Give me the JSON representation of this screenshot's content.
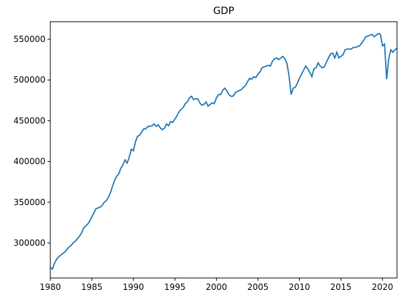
{
  "chart_data": {
    "type": "line",
    "title": "GDP",
    "series": [
      {
        "name": "GDP",
        "color": "#1f77b4",
        "x": [
          1980,
          1980.25,
          1980.5,
          1980.75,
          1981,
          1981.25,
          1981.5,
          1981.75,
          1982,
          1982.25,
          1982.5,
          1982.75,
          1983,
          1983.25,
          1983.5,
          1983.75,
          1984,
          1984.25,
          1984.5,
          1984.75,
          1985,
          1985.25,
          1985.5,
          1985.75,
          1986,
          1986.25,
          1986.5,
          1986.75,
          1987,
          1987.25,
          1987.5,
          1987.75,
          1988,
          1988.25,
          1988.5,
          1988.75,
          1989,
          1989.25,
          1989.5,
          1989.75,
          1990,
          1990.25,
          1990.5,
          1990.75,
          1991,
          1991.25,
          1991.5,
          1991.75,
          1992,
          1992.25,
          1992.5,
          1992.75,
          1993,
          1993.25,
          1993.5,
          1993.75,
          1994,
          1994.25,
          1994.5,
          1994.75,
          1995,
          1995.25,
          1995.5,
          1995.75,
          1996,
          1996.25,
          1996.5,
          1996.75,
          1997,
          1997.25,
          1997.5,
          1997.75,
          1998,
          1998.25,
          1998.5,
          1998.75,
          1999,
          1999.25,
          1999.5,
          1999.75,
          2000,
          2000.25,
          2000.5,
          2000.75,
          2001,
          2001.25,
          2001.5,
          2001.75,
          2002,
          2002.25,
          2002.5,
          2002.75,
          2003,
          2003.25,
          2003.5,
          2003.75,
          2004,
          2004.25,
          2004.5,
          2004.75,
          2005,
          2005.25,
          2005.5,
          2005.75,
          2006,
          2006.25,
          2006.5,
          2006.75,
          2007,
          2007.25,
          2007.5,
          2007.75,
          2008,
          2008.25,
          2008.5,
          2008.75,
          2009,
          2009.25,
          2009.5,
          2009.75,
          2010,
          2010.25,
          2010.5,
          2010.75,
          2011,
          2011.25,
          2011.5,
          2011.75,
          2012,
          2012.25,
          2012.5,
          2012.75,
          2013,
          2013.25,
          2013.5,
          2013.75,
          2014,
          2014.25,
          2014.5,
          2014.75,
          2015,
          2015.25,
          2015.5,
          2015.75,
          2016,
          2016.25,
          2016.5,
          2016.75,
          2017,
          2017.25,
          2017.5,
          2017.75,
          2018,
          2018.25,
          2018.5,
          2018.75,
          2019,
          2019.25,
          2019.5,
          2019.75,
          2020,
          2020.25,
          2020.5,
          2020.75,
          2021,
          2021.25,
          2021.5,
          2021.75
        ],
        "values": [
          270000,
          268000,
          275000,
          280000,
          283000,
          285000,
          287000,
          289000,
          292000,
          295000,
          297000,
          300000,
          302000,
          305000,
          308000,
          312000,
          318000,
          321000,
          323000,
          327000,
          332000,
          337000,
          342000,
          343000,
          344000,
          346000,
          350000,
          352000,
          356000,
          362000,
          370000,
          377000,
          382000,
          385000,
          392000,
          396000,
          402000,
          398000,
          405000,
          415000,
          413000,
          424000,
          431000,
          432000,
          436000,
          440000,
          440000,
          443000,
          443000,
          444000,
          446000,
          443000,
          445000,
          441000,
          439000,
          441000,
          446000,
          444000,
          449000,
          448000,
          452000,
          456000,
          461000,
          464000,
          466000,
          471000,
          473000,
          478000,
          480000,
          476000,
          477000,
          477000,
          472000,
          469000,
          470000,
          473000,
          468000,
          470000,
          472000,
          471000,
          478000,
          482000,
          482000,
          487000,
          490000,
          487000,
          482000,
          480000,
          480000,
          484000,
          486000,
          487000,
          488000,
          491000,
          493000,
          498000,
          502000,
          501000,
          504000,
          503000,
          507000,
          510000,
          515000,
          516000,
          517000,
          518000,
          517000,
          523000,
          526000,
          527000,
          525000,
          527000,
          529000,
          526000,
          520000,
          505000,
          482000,
          490000,
          491000,
          496000,
          502000,
          507000,
          512000,
          517000,
          514000,
          509000,
          504000,
          514000,
          515000,
          521000,
          517000,
          515000,
          516000,
          522000,
          527000,
          532000,
          533000,
          527000,
          534000,
          527000,
          529000,
          531000,
          537000,
          538000,
          538000,
          538000,
          540000,
          540000,
          541000,
          542000,
          545000,
          549000,
          553000,
          554000,
          555000,
          556000,
          553000,
          555000,
          557000,
          556000,
          542000,
          544000,
          501000,
          526000,
          537000,
          534000,
          537000,
          539000
        ]
      }
    ],
    "xlim": [
      1980,
      2021.75
    ],
    "xticks": [
      1980,
      1985,
      1990,
      1995,
      2000,
      2005,
      2010,
      2015,
      2020
    ],
    "ylim": [
      257000,
      571500
    ],
    "yticks": [
      300000,
      350000,
      400000,
      450000,
      500000,
      550000
    ]
  }
}
